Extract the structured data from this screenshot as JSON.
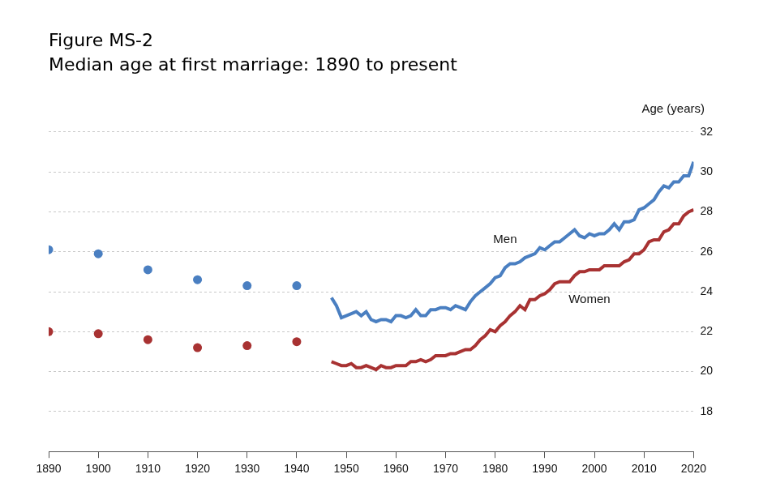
{
  "chart_data": {
    "type": "line",
    "title": "Figure MS-2",
    "subtitle": "Median age at first marriage: 1890 to present",
    "ylabel": "Age (years)",
    "x": [
      1890,
      1900,
      1910,
      1920,
      1930,
      1940,
      1947,
      1948,
      1949,
      1950,
      1951,
      1952,
      1953,
      1954,
      1955,
      1956,
      1957,
      1958,
      1959,
      1960,
      1961,
      1962,
      1963,
      1964,
      1965,
      1966,
      1967,
      1968,
      1969,
      1970,
      1971,
      1972,
      1973,
      1974,
      1975,
      1976,
      1977,
      1978,
      1979,
      1980,
      1981,
      1982,
      1983,
      1984,
      1985,
      1986,
      1987,
      1988,
      1989,
      1990,
      1991,
      1992,
      1993,
      1994,
      1995,
      1996,
      1997,
      1998,
      1999,
      2000,
      2001,
      2002,
      2003,
      2004,
      2005,
      2006,
      2007,
      2008,
      2009,
      2010,
      2011,
      2012,
      2013,
      2014,
      2015,
      2016,
      2017,
      2018,
      2019,
      2020
    ],
    "series": [
      {
        "name": "Men",
        "color": "#4a7fc1",
        "marker": "circle",
        "line_style": "solid",
        "values": [
          26.1,
          25.9,
          25.1,
          24.6,
          24.3,
          24.3,
          23.7,
          23.3,
          22.7,
          22.8,
          22.9,
          23.0,
          22.8,
          23.0,
          22.6,
          22.5,
          22.6,
          22.6,
          22.5,
          22.8,
          22.8,
          22.7,
          22.8,
          23.1,
          22.8,
          22.8,
          23.1,
          23.1,
          23.2,
          23.2,
          23.1,
          23.3,
          23.2,
          23.1,
          23.5,
          23.8,
          24.0,
          24.2,
          24.4,
          24.7,
          24.8,
          25.2,
          25.4,
          25.4,
          25.5,
          25.7,
          25.8,
          25.9,
          26.2,
          26.1,
          26.3,
          26.5,
          26.5,
          26.7,
          26.9,
          27.1,
          26.8,
          26.7,
          26.9,
          26.8,
          26.9,
          26.9,
          27.1,
          27.4,
          27.1,
          27.5,
          27.5,
          27.6,
          28.1,
          28.2,
          28.4,
          28.6,
          29.0,
          29.3,
          29.2,
          29.5,
          29.5,
          29.8,
          29.8,
          30.5
        ]
      },
      {
        "name": "Women",
        "color": "#a83232",
        "marker": "circle",
        "line_style": "solid",
        "values": [
          22.0,
          21.9,
          21.6,
          21.2,
          21.3,
          21.5,
          20.5,
          20.4,
          20.3,
          20.3,
          20.4,
          20.2,
          20.2,
          20.3,
          20.2,
          20.1,
          20.3,
          20.2,
          20.2,
          20.3,
          20.3,
          20.3,
          20.5,
          20.5,
          20.6,
          20.5,
          20.6,
          20.8,
          20.8,
          20.8,
          20.9,
          20.9,
          21.0,
          21.1,
          21.1,
          21.3,
          21.6,
          21.8,
          22.1,
          22.0,
          22.3,
          22.5,
          22.8,
          23.0,
          23.3,
          23.1,
          23.6,
          23.6,
          23.8,
          23.9,
          24.1,
          24.4,
          24.5,
          24.5,
          24.5,
          24.8,
          25.0,
          25.0,
          25.1,
          25.1,
          25.1,
          25.3,
          25.3,
          25.3,
          25.3,
          25.5,
          25.6,
          25.9,
          25.9,
          26.1,
          26.5,
          26.6,
          26.6,
          27.0,
          27.1,
          27.4,
          27.4,
          27.8,
          28.0,
          28.1
        ]
      }
    ],
    "annotations": [
      {
        "text": "Men",
        "x": 1982,
        "y": 26.6
      },
      {
        "text": "Women",
        "x": 1999,
        "y": 23.6
      }
    ],
    "xlim": [
      1890,
      2020
    ],
    "xticks": [
      1890,
      1900,
      1910,
      1920,
      1930,
      1940,
      1950,
      1960,
      1970,
      1980,
      1990,
      2000,
      2010,
      2020
    ],
    "ylim": [
      16,
      32
    ],
    "yticks": [
      18,
      20,
      22,
      24,
      26,
      28,
      30,
      32
    ],
    "grid": true
  }
}
